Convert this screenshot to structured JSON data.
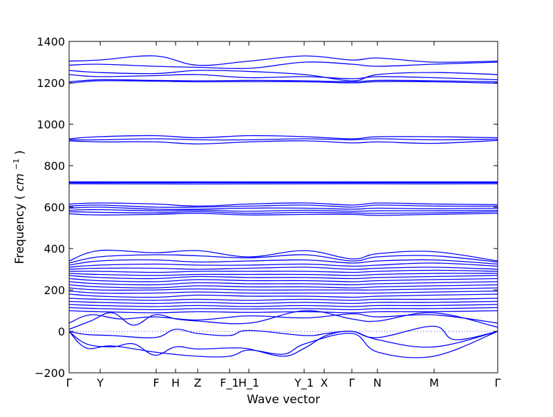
{
  "chart_data": {
    "type": "line",
    "title": "",
    "xlabel": "Wave vector",
    "ylabel": "Frequency (cm⁻¹)",
    "ylabel_parts": {
      "text": "Frequency",
      "unit_base": "cm",
      "unit_exp": "−1"
    },
    "ylim": [
      -200,
      1400
    ],
    "yticks": [
      -200,
      0,
      200,
      400,
      600,
      800,
      1000,
      1200,
      1400
    ],
    "ytick_labels": [
      "−200",
      "0",
      "200",
      "400",
      "600",
      "800",
      "1000",
      "1200",
      "1400"
    ],
    "xlim": [
      0,
      1
    ],
    "xticks": [
      {
        "label": "Γ",
        "pos": 0.0
      },
      {
        "label": "Y",
        "pos": 0.0726
      },
      {
        "label": "F",
        "pos": 0.2032
      },
      {
        "label": "H",
        "pos": 0.2484
      },
      {
        "label": "Z",
        "pos": 0.3
      },
      {
        "label": "F_1",
        "pos": 0.3742
      },
      {
        "label": "H_1",
        "pos": 0.4194
      },
      {
        "label": "Y_1",
        "pos": 0.5484
      },
      {
        "label": "X",
        "pos": 0.5952
      },
      {
        "label": "Γ",
        "pos": 0.6597
      },
      {
        "label": "N",
        "pos": 0.7194
      },
      {
        "label": "M",
        "pos": 0.8516
      },
      {
        "label": "Γ",
        "pos": 1.0
      }
    ],
    "zero_line": {
      "y": 0,
      "style": "dotted",
      "color": "#0000ff"
    },
    "line_color": "#0000ff",
    "grid": false,
    "legend": "none",
    "series": [
      {
        "x": [
          0,
          0.07,
          0.2,
          0.3,
          0.42,
          0.55,
          0.66,
          0.72,
          0.85,
          1.0
        ],
        "y": [
          1305,
          1310,
          1330,
          1285,
          1305,
          1330,
          1310,
          1320,
          1300,
          1305
        ]
      },
      {
        "x": [
          0,
          0.07,
          0.2,
          0.3,
          0.42,
          0.55,
          0.66,
          0.72,
          0.85,
          1.0
        ],
        "y": [
          1285,
          1290,
          1280,
          1275,
          1270,
          1300,
          1290,
          1280,
          1290,
          1300
        ]
      },
      {
        "x": [
          0,
          0.07,
          0.2,
          0.3,
          0.42,
          0.55,
          0.66,
          0.72,
          0.85,
          1.0
        ],
        "y": [
          1260,
          1250,
          1245,
          1260,
          1255,
          1240,
          1210,
          1240,
          1250,
          1240
        ]
      },
      {
        "x": [
          0,
          0.07,
          0.2,
          0.3,
          0.42,
          0.55,
          0.66,
          0.72,
          0.85,
          1.0
        ],
        "y": [
          1240,
          1230,
          1235,
          1240,
          1225,
          1230,
          1220,
          1230,
          1225,
          1215
        ]
      },
      {
        "x": [
          0,
          0.07,
          0.2,
          0.3,
          0.42,
          0.55,
          0.66,
          0.72,
          0.85,
          1.0
        ],
        "y": [
          1205,
          1215,
          1212,
          1210,
          1212,
          1210,
          1205,
          1212,
          1210,
          1205
        ]
      },
      {
        "x": [
          0,
          0.07,
          0.2,
          0.3,
          0.42,
          0.55,
          0.66,
          0.72,
          0.85,
          1.0
        ],
        "y": [
          1198,
          1210,
          1208,
          1205,
          1206,
          1205,
          1200,
          1206,
          1205,
          1198
        ]
      },
      {
        "x": [
          0,
          0.07,
          0.2,
          0.3,
          0.42,
          0.55,
          0.66,
          0.72,
          0.85,
          1.0
        ],
        "y": [
          930,
          940,
          945,
          935,
          945,
          940,
          930,
          940,
          940,
          935
        ]
      },
      {
        "x": [
          0,
          0.07,
          0.2,
          0.3,
          0.42,
          0.55,
          0.66,
          0.72,
          0.85,
          1.0
        ],
        "y": [
          925,
          925,
          930,
          925,
          925,
          930,
          925,
          930,
          925,
          928
        ]
      },
      {
        "x": [
          0,
          0.07,
          0.2,
          0.3,
          0.42,
          0.55,
          0.66,
          0.72,
          0.85,
          1.0
        ],
        "y": [
          920,
          915,
          915,
          905,
          915,
          920,
          910,
          915,
          908,
          922
        ]
      },
      {
        "x": [
          0,
          0.2,
          0.42,
          0.66,
          0.85,
          1.0
        ],
        "y": [
          722,
          722,
          722,
          722,
          722,
          722
        ]
      },
      {
        "x": [
          0,
          0.2,
          0.42,
          0.66,
          0.85,
          1.0
        ],
        "y": [
          718,
          718,
          718,
          718,
          718,
          718
        ]
      },
      {
        "x": [
          0,
          0.2,
          0.42,
          0.66,
          0.85,
          1.0
        ],
        "y": [
          713,
          712,
          712,
          713,
          712,
          713
        ]
      },
      {
        "x": [
          0,
          0.07,
          0.2,
          0.3,
          0.42,
          0.55,
          0.66,
          0.72,
          0.85,
          1.0
        ],
        "y": [
          615,
          620,
          615,
          605,
          615,
          620,
          610,
          620,
          615,
          612
        ]
      },
      {
        "x": [
          0,
          0.07,
          0.2,
          0.3,
          0.42,
          0.55,
          0.66,
          0.72,
          0.85,
          1.0
        ],
        "y": [
          605,
          610,
          600,
          600,
          605,
          610,
          600,
          610,
          605,
          605
        ]
      },
      {
        "x": [
          0,
          0.07,
          0.2,
          0.3,
          0.42,
          0.55,
          0.66,
          0.72,
          0.85,
          1.0
        ],
        "y": [
          595,
          600,
          590,
          590,
          595,
          595,
          590,
          595,
          592,
          595
        ]
      },
      {
        "x": [
          0,
          0.07,
          0.2,
          0.3,
          0.42,
          0.55,
          0.66,
          0.72,
          0.85,
          1.0
        ],
        "y": [
          585,
          588,
          582,
          585,
          580,
          585,
          580,
          582,
          582,
          585
        ]
      },
      {
        "x": [
          0,
          0.07,
          0.2,
          0.3,
          0.42,
          0.55,
          0.66,
          0.72,
          0.85,
          1.0
        ],
        "y": [
          578,
          575,
          572,
          578,
          570,
          575,
          572,
          570,
          572,
          578
        ]
      },
      {
        "x": [
          0,
          0.07,
          0.2,
          0.3,
          0.42,
          0.55,
          0.66,
          0.72,
          0.85,
          1.0
        ],
        "y": [
          568,
          562,
          565,
          570,
          562,
          565,
          565,
          560,
          565,
          570
        ]
      },
      {
        "x": [
          0,
          0.07,
          0.2,
          0.3,
          0.42,
          0.55,
          0.66,
          0.72,
          0.85,
          1.0
        ],
        "y": [
          340,
          390,
          380,
          390,
          360,
          390,
          350,
          375,
          385,
          340
        ]
      },
      {
        "x": [
          0,
          0.07,
          0.2,
          0.3,
          0.42,
          0.55,
          0.66,
          0.72,
          0.85,
          1.0
        ],
        "y": [
          330,
          360,
          370,
          365,
          355,
          370,
          340,
          360,
          365,
          335
        ]
      },
      {
        "x": [
          0,
          0.07,
          0.2,
          0.3,
          0.42,
          0.55,
          0.66,
          0.72,
          0.85,
          1.0
        ],
        "y": [
          320,
          340,
          345,
          335,
          340,
          345,
          330,
          340,
          345,
          325
        ]
      },
      {
        "x": [
          0,
          0.07,
          0.2,
          0.3,
          0.42,
          0.55,
          0.66,
          0.72,
          0.85,
          1.0
        ],
        "y": [
          310,
          320,
          325,
          320,
          320,
          325,
          315,
          320,
          330,
          315
        ]
      },
      {
        "x": [
          0,
          0.07,
          0.2,
          0.3,
          0.42,
          0.55,
          0.66,
          0.72,
          0.85,
          1.0
        ],
        "y": [
          300,
          305,
          305,
          300,
          305,
          310,
          300,
          305,
          310,
          300
        ]
      },
      {
        "x": [
          0,
          0.07,
          0.2,
          0.3,
          0.42,
          0.55,
          0.66,
          0.72,
          0.85,
          1.0
        ],
        "y": [
          290,
          290,
          285,
          290,
          290,
          290,
          285,
          290,
          295,
          290
        ]
      },
      {
        "x": [
          0,
          0.07,
          0.2,
          0.3,
          0.42,
          0.55,
          0.66,
          0.72,
          0.85,
          1.0
        ],
        "y": [
          280,
          275,
          270,
          275,
          275,
          275,
          270,
          275,
          280,
          280
        ]
      },
      {
        "x": [
          0,
          0.07,
          0.2,
          0.3,
          0.42,
          0.55,
          0.66,
          0.72,
          0.85,
          1.0
        ],
        "y": [
          270,
          260,
          255,
          265,
          260,
          260,
          255,
          260,
          265,
          270
        ]
      },
      {
        "x": [
          0,
          0.07,
          0.2,
          0.3,
          0.42,
          0.55,
          0.66,
          0.72,
          0.85,
          1.0
        ],
        "y": [
          255,
          245,
          240,
          250,
          245,
          245,
          240,
          245,
          250,
          255
        ]
      },
      {
        "x": [
          0,
          0.07,
          0.2,
          0.3,
          0.42,
          0.55,
          0.66,
          0.72,
          0.85,
          1.0
        ],
        "y": [
          240,
          230,
          225,
          235,
          230,
          230,
          225,
          230,
          235,
          240
        ]
      },
      {
        "x": [
          0,
          0.07,
          0.2,
          0.3,
          0.42,
          0.55,
          0.66,
          0.72,
          0.85,
          1.0
        ],
        "y": [
          225,
          215,
          210,
          220,
          215,
          215,
          210,
          215,
          220,
          225
        ]
      },
      {
        "x": [
          0,
          0.07,
          0.2,
          0.3,
          0.42,
          0.55,
          0.66,
          0.72,
          0.85,
          1.0
        ],
        "y": [
          210,
          200,
          200,
          205,
          200,
          200,
          200,
          200,
          205,
          210
        ]
      },
      {
        "x": [
          0,
          0.07,
          0.2,
          0.3,
          0.42,
          0.55,
          0.66,
          0.72,
          0.85,
          1.0
        ],
        "y": [
          195,
          185,
          185,
          190,
          185,
          185,
          185,
          185,
          190,
          195
        ]
      },
      {
        "x": [
          0,
          0.07,
          0.2,
          0.3,
          0.42,
          0.55,
          0.66,
          0.72,
          0.85,
          1.0
        ],
        "y": [
          180,
          170,
          165,
          175,
          170,
          170,
          165,
          170,
          175,
          180
        ]
      },
      {
        "x": [
          0,
          0.07,
          0.2,
          0.3,
          0.42,
          0.55,
          0.66,
          0.72,
          0.85,
          1.0
        ],
        "y": [
          160,
          155,
          150,
          155,
          150,
          155,
          150,
          155,
          155,
          160
        ]
      },
      {
        "x": [
          0,
          0.07,
          0.2,
          0.3,
          0.42,
          0.55,
          0.66,
          0.72,
          0.85,
          1.0
        ],
        "y": [
          145,
          140,
          135,
          140,
          135,
          140,
          135,
          140,
          140,
          145
        ]
      },
      {
        "x": [
          0,
          0.07,
          0.2,
          0.3,
          0.42,
          0.55,
          0.66,
          0.72,
          0.85,
          1.0
        ],
        "y": [
          130,
          125,
          120,
          125,
          120,
          125,
          120,
          125,
          125,
          130
        ]
      },
      {
        "x": [
          0,
          0.07,
          0.2,
          0.3,
          0.42,
          0.55,
          0.66,
          0.72,
          0.85,
          1.0
        ],
        "y": [
          115,
          110,
          105,
          110,
          108,
          110,
          105,
          110,
          110,
          115
        ]
      },
      {
        "x": [
          0,
          0.07,
          0.2,
          0.3,
          0.42,
          0.55,
          0.66,
          0.72,
          0.85,
          1.0
        ],
        "y": [
          100,
          95,
          90,
          95,
          92,
          95,
          90,
          95,
          95,
          100
        ]
      },
      {
        "x": [
          0,
          0.05,
          0.12,
          0.2,
          0.3,
          0.42,
          0.55,
          0.66,
          0.72,
          0.85,
          1.0
        ],
        "y": [
          40,
          80,
          60,
          70,
          55,
          75,
          65,
          85,
          70,
          80,
          40
        ]
      },
      {
        "x": [
          0,
          0.05,
          0.1,
          0.15,
          0.2,
          0.25,
          0.3,
          0.42,
          0.55,
          0.66,
          0.72,
          0.85,
          1.0
        ],
        "y": [
          10,
          50,
          90,
          30,
          80,
          60,
          50,
          40,
          100,
          60,
          50,
          90,
          20
        ]
      },
      {
        "x": [
          0,
          0.04,
          0.1,
          0.2,
          0.248,
          0.3,
          0.374,
          0.42,
          0.55,
          0.6,
          0.66,
          0.72,
          0.85,
          0.9,
          1.0
        ],
        "y": [
          0,
          -15,
          -20,
          -30,
          10,
          -10,
          -20,
          5,
          -20,
          -10,
          0,
          -30,
          25,
          -40,
          0
        ]
      },
      {
        "x": [
          0,
          0.04,
          0.1,
          0.15,
          0.2,
          0.248,
          0.3,
          0.374,
          0.42,
          0.5,
          0.55,
          0.6,
          0.66,
          0.72,
          0.85,
          1.0
        ],
        "y": [
          0,
          -60,
          -75,
          -60,
          -115,
          -75,
          -85,
          -80,
          -85,
          -120,
          -80,
          -20,
          0,
          -40,
          -75,
          0
        ]
      },
      {
        "x": [
          0,
          0.04,
          0.1,
          0.2,
          0.3,
          0.374,
          0.42,
          0.5,
          0.55,
          0.66,
          0.72,
          0.85,
          1.0
        ],
        "y": [
          0,
          -80,
          -70,
          -100,
          -120,
          -120,
          -90,
          -110,
          -60,
          -10,
          -100,
          -120,
          0
        ]
      }
    ]
  }
}
